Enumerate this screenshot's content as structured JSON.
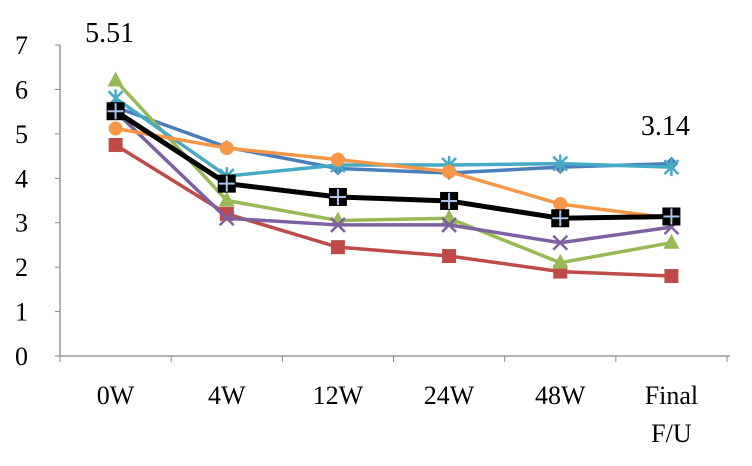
{
  "chart_data": {
    "type": "line",
    "categories": [
      "0W",
      "4W",
      "12W",
      "24W",
      "48W",
      "Final\nF/U"
    ],
    "ylim": [
      0,
      7
    ],
    "yticks": [
      0,
      1,
      2,
      3,
      4,
      5,
      6,
      7
    ],
    "grid": false,
    "series": [
      {
        "color": "#4a7ebb",
        "marker": "diamond",
        "values": [
          5.6,
          4.7,
          4.22,
          4.12,
          4.25,
          4.33
        ]
      },
      {
        "color": "#be4b48",
        "marker": "square",
        "values": [
          4.75,
          3.2,
          2.45,
          2.25,
          1.9,
          1.8
        ]
      },
      {
        "color": "#98b954",
        "marker": "triangle",
        "values": [
          6.2,
          3.5,
          3.05,
          3.1,
          2.1,
          2.55
        ]
      },
      {
        "color": "#7d60a0",
        "marker": "x",
        "values": [
          5.5,
          3.1,
          2.95,
          2.95,
          2.55,
          2.9
        ]
      },
      {
        "color": "#46aac5",
        "marker": "star",
        "values": [
          5.8,
          4.05,
          4.3,
          4.3,
          4.33,
          4.25
        ]
      },
      {
        "color": "#f79646",
        "marker": "circle",
        "values": [
          5.12,
          4.68,
          4.42,
          4.15,
          3.42,
          3.1
        ]
      },
      {
        "color": "#000000",
        "marker": "plus-square",
        "values": [
          5.51,
          3.88,
          3.58,
          3.49,
          3.1,
          3.14
        ]
      }
    ],
    "annotations": [
      {
        "text": "5.51",
        "category": "0W",
        "series_index": 6
      },
      {
        "text": "3.14",
        "category": "Final\nF/U",
        "series_index": 6
      }
    ]
  }
}
